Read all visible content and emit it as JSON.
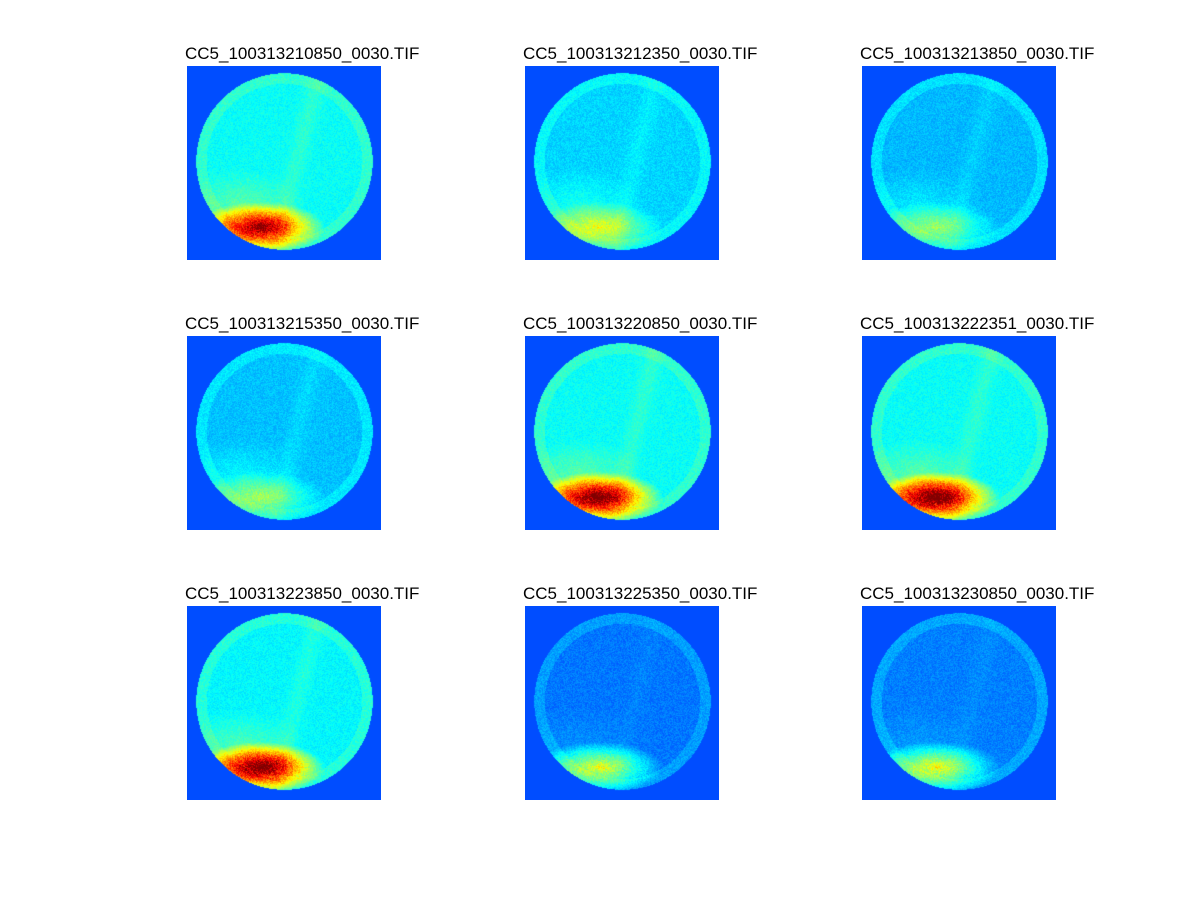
{
  "figure": {
    "panels": [
      {
        "title": "CC5_100313210850_0030.TIF",
        "brightness": 0.72,
        "hot": 0.85
      },
      {
        "title": "CC5_100313212350_0030.TIF",
        "brightness": 0.55,
        "hot": 0.15
      },
      {
        "title": "CC5_100313213850_0030.TIF",
        "brightness": 0.45,
        "hot": 0.05
      },
      {
        "title": "CC5_100313215350_0030.TIF",
        "brightness": 0.48,
        "hot": 0.05
      },
      {
        "title": "CC5_100313220850_0030.TIF",
        "brightness": 0.72,
        "hot": 0.95
      },
      {
        "title": "CC5_100313222351_0030.TIF",
        "brightness": 0.72,
        "hot": 1.0
      },
      {
        "title": "CC5_100313223850_0030.TIF",
        "brightness": 0.68,
        "hot": 1.0
      },
      {
        "title": "CC5_100313225350_0030.TIF",
        "brightness": 0.22,
        "hot": 0.35
      },
      {
        "title": "CC5_100313230850_0030.TIF",
        "brightness": 0.25,
        "hot": 0.35
      }
    ],
    "colormap": "jet",
    "background_color": "#0033ff"
  }
}
